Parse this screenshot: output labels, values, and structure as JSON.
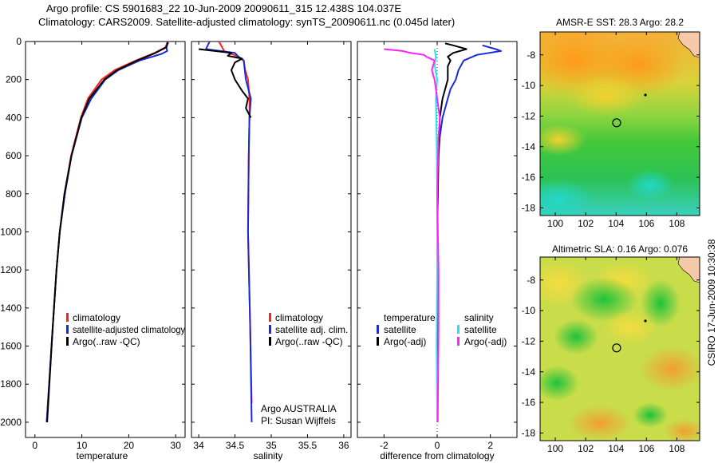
{
  "header": {
    "line1": "Argo profile: CS 5901683_22 10-Jun-2009 20090611_315 12.438S 104.037E",
    "line2": "Climatology: CARS2009. Satellite-adjusted climatology: synTS_20090611.nc (0.045d later)"
  },
  "colors": {
    "climatology": "#ff2020",
    "satellite": "#1a2bd6",
    "argo": "#000000",
    "sal_satellite": "#22e5ee",
    "sal_argo": "#ff22ff"
  },
  "chart_data": [
    {
      "id": "temperature",
      "type": "line",
      "xlabel": "temperature",
      "ylabel": "",
      "xlim": [
        -2,
        32
      ],
      "ylim": [
        2080,
        0
      ],
      "xticks": [
        0,
        10,
        20,
        30
      ],
      "yticks": [
        0,
        200,
        400,
        600,
        800,
        1000,
        1200,
        1400,
        1600,
        1800,
        2000
      ],
      "legend": [
        "climatology",
        "satellite-adjusted climatology",
        "Argo(..raw -QC)"
      ],
      "series": [
        {
          "name": "climatology",
          "color_key": "climatology",
          "depth": [
            0,
            30,
            60,
            100,
            150,
            200,
            300,
            400,
            600,
            800,
            1000,
            1200,
            1500,
            2000
          ],
          "values": [
            28.3,
            27.8,
            25.5,
            21.5,
            17.0,
            14.2,
            11.3,
            9.8,
            7.7,
            6.3,
            5.3,
            4.6,
            3.8,
            2.5
          ]
        },
        {
          "name": "satellite-adjusted climatology",
          "color_key": "satellite",
          "depth": [
            0,
            30,
            50,
            65,
            100,
            150,
            200,
            300,
            400,
            600,
            800,
            1000,
            1200,
            1500,
            2000
          ],
          "values": [
            28.3,
            28.0,
            28.2,
            27.0,
            22.3,
            17.8,
            15.0,
            12.0,
            10.0,
            7.8,
            6.4,
            5.3,
            4.6,
            3.8,
            2.5
          ]
        },
        {
          "name": "Argo(..raw -QC)",
          "color_key": "argo",
          "depth": [
            5,
            30,
            60,
            100,
            150,
            200,
            300,
            400,
            600,
            800,
            1000,
            1200,
            1500,
            2000
          ],
          "values": [
            28.4,
            28.0,
            25.7,
            21.8,
            17.5,
            14.8,
            11.6,
            9.9,
            7.8,
            6.3,
            5.3,
            4.6,
            3.8,
            2.6
          ]
        }
      ]
    },
    {
      "id": "salinity",
      "type": "line",
      "xlabel": "salinity",
      "ylabel": "",
      "xlim": [
        33.9,
        36.1
      ],
      "ylim": [
        2080,
        0
      ],
      "xticks": [
        34,
        34.5,
        35,
        35.5,
        36
      ],
      "legend": [
        "climatology",
        "satellite adj. clim.",
        "Argo(..raw -QC)"
      ],
      "annotation": [
        "Argo AUSTRALIA",
        "PI: Susan Wijffels"
      ],
      "series": [
        {
          "name": "climatology",
          "color_key": "climatology",
          "depth": [
            0,
            50,
            80,
            100,
            150,
            200,
            300,
            400,
            600,
            1000,
            1500,
            1900
          ],
          "values": [
            34.28,
            34.35,
            34.55,
            34.62,
            34.64,
            34.68,
            34.7,
            34.7,
            34.69,
            34.68,
            34.71,
            34.73
          ]
        },
        {
          "name": "satellite adj. clim.",
          "color_key": "satellite",
          "depth": [
            0,
            40,
            60,
            80,
            100,
            200,
            300,
            400,
            600,
            1000,
            1500,
            2000
          ],
          "values": [
            34.15,
            34.1,
            34.5,
            34.55,
            34.62,
            34.65,
            34.72,
            34.7,
            34.69,
            34.68,
            34.71,
            34.73
          ]
        },
        {
          "name": "Argo(..raw -QC)",
          "color_key": "argo",
          "depth": [
            40,
            60,
            75,
            90,
            110,
            150,
            200,
            260,
            300,
            350,
            400
          ],
          "values": [
            34.0,
            34.45,
            34.4,
            34.6,
            34.5,
            34.45,
            34.5,
            34.6,
            34.68,
            34.65,
            34.72
          ]
        }
      ]
    },
    {
      "id": "difference",
      "type": "line",
      "xlabel": "difference from climatology",
      "ylabel": "",
      "xlim": [
        -3,
        3
      ],
      "ylim": [
        2080,
        0
      ],
      "xticks": [
        -2,
        0,
        2
      ],
      "legend_temperature": {
        "header": "temperature",
        "items": [
          "satellite",
          "Argo(-adj)"
        ]
      },
      "legend_salinity": {
        "header": "salinity",
        "items": [
          "satellite",
          "Argo(-adj)"
        ]
      },
      "series": [
        {
          "name": "temperature satellite",
          "color_key": "satellite",
          "depth": [
            20,
            40,
            50,
            70,
            100,
            150,
            200,
            250,
            300,
            350,
            400,
            500,
            700,
            1000,
            1500,
            2000
          ],
          "values": [
            1.7,
            2.2,
            2.4,
            1.5,
            1.0,
            0.8,
            0.7,
            0.5,
            0.4,
            0.3,
            0.2,
            0.1,
            0.0,
            0.0,
            0.0,
            0.0
          ]
        },
        {
          "name": "temperature Argo(-adj)",
          "color_key": "argo",
          "depth": [
            10,
            20,
            40,
            60,
            80,
            100,
            130,
            200,
            300,
            400,
            600,
            1000,
            1500,
            2000
          ],
          "values": [
            0.3,
            0.6,
            1.1,
            0.6,
            0.4,
            0.5,
            0.4,
            0.4,
            0.2,
            0.1,
            0.05,
            0.0,
            0.0,
            0.0
          ]
        },
        {
          "name": "salinity satellite",
          "color_key": "sal_satellite",
          "depth": [
            40,
            80,
            120,
            160,
            200,
            300,
            500,
            800,
            1200,
            1600,
            2000
          ],
          "values": [
            -0.1,
            -0.05,
            -0.1,
            -0.05,
            0.0,
            -0.05,
            -0.02,
            0.0,
            0.0,
            -0.02,
            0.0
          ]
        },
        {
          "name": "salinity Argo(-adj)",
          "color_key": "sal_argo",
          "depth": [
            40,
            50,
            60,
            70,
            80,
            100,
            150,
            200,
            300,
            400,
            500,
            800,
            1200,
            1500,
            2000
          ],
          "values": [
            -2.0,
            -1.3,
            -1.0,
            -0.5,
            -0.4,
            -0.1,
            -0.2,
            -0.1,
            0.0,
            0.1,
            0.05,
            0.0,
            0.05,
            0.05,
            0.02
          ]
        }
      ]
    },
    {
      "id": "sst_map",
      "type": "heatmap",
      "title": "AMSR-E SST: 28.3 Argo: 28.2",
      "xlim": [
        99,
        109.5
      ],
      "ylim": [
        -18.5,
        -6.5
      ],
      "xticks": [
        100,
        102,
        104,
        106,
        108
      ],
      "yticks": [
        -8,
        -10,
        -12,
        -14,
        -16,
        -18
      ],
      "argo_position": [
        104.037,
        -12.438
      ]
    },
    {
      "id": "sla_map",
      "type": "heatmap",
      "title": "Altimetric SLA: 0.16 Argo: 0.076",
      "xlim": [
        99,
        109.5
      ],
      "ylim": [
        -18.5,
        -6.5
      ],
      "xticks": [
        100,
        102,
        104,
        106,
        108
      ],
      "yticks": [
        -8,
        -10,
        -12,
        -14,
        -16,
        -18
      ],
      "argo_position": [
        104.037,
        -12.438
      ]
    }
  ],
  "footer": {
    "stamp": "CSIRO 17-Jun-2009 10:30:38"
  }
}
